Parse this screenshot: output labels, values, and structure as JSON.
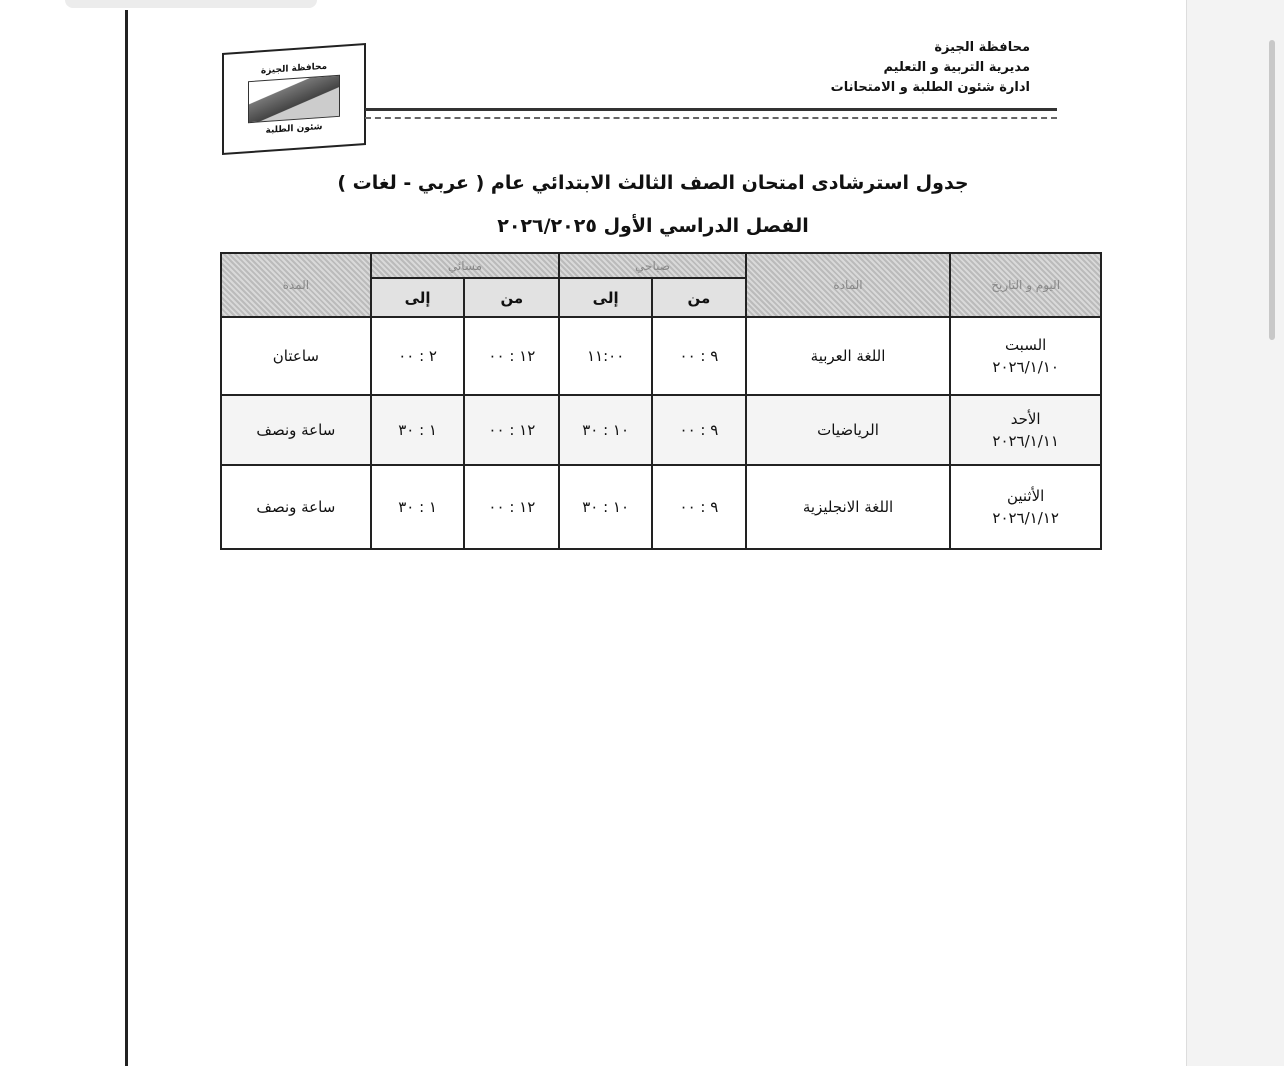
{
  "header": {
    "lines": [
      "محافظة الجيزة",
      "مديرية التربية و التعليم",
      "ادارة شئون الطلبة و الامتحانات"
    ],
    "logo_text": [
      "محافظة الجيزة",
      "مديرية التربية و التعليم",
      "شئون الطلبة"
    ]
  },
  "title": "جدول استرشادى امتحان الصف الثالث الابتدائي عام ( عربي - لغات )",
  "subtitle": "الفصل الدراسي الأول ٢٠٢٦/٢٠٢٥",
  "table": {
    "headers": {
      "day": "اليوم و التاريخ",
      "subject": "المادة",
      "morning": "صباحي",
      "evening": "مسائي",
      "duration": "المدة",
      "from": "من",
      "to": "إلى"
    },
    "rows": [
      {
        "day": "السبت",
        "date": "٢٠٢٦/١/١٠",
        "subject": "اللغة العربية",
        "m_from": "٩ : ٠٠",
        "m_to": "١١:٠٠",
        "e_from": "١٢ : ٠٠",
        "e_to": "٢ : ٠٠",
        "duration": "ساعتان"
      },
      {
        "day": "الأحد",
        "date": "٢٠٢٦/١/١١",
        "subject": "الرياضيات",
        "m_from": "٩ : ٠٠",
        "m_to": "١٠ : ٣٠",
        "e_from": "١٢ : ٠٠",
        "e_to": "١ : ٣٠",
        "duration": "ساعة ونصف"
      },
      {
        "day": "الأثنين",
        "date": "٢٠٢٦/١/١٢",
        "subject": "اللغة الانجليزية",
        "m_from": "٩ : ٠٠",
        "m_to": "١٠ : ٣٠",
        "e_from": "١٢ : ٠٠",
        "e_to": "١ : ٣٠",
        "duration": "ساعة ونصف"
      }
    ]
  }
}
